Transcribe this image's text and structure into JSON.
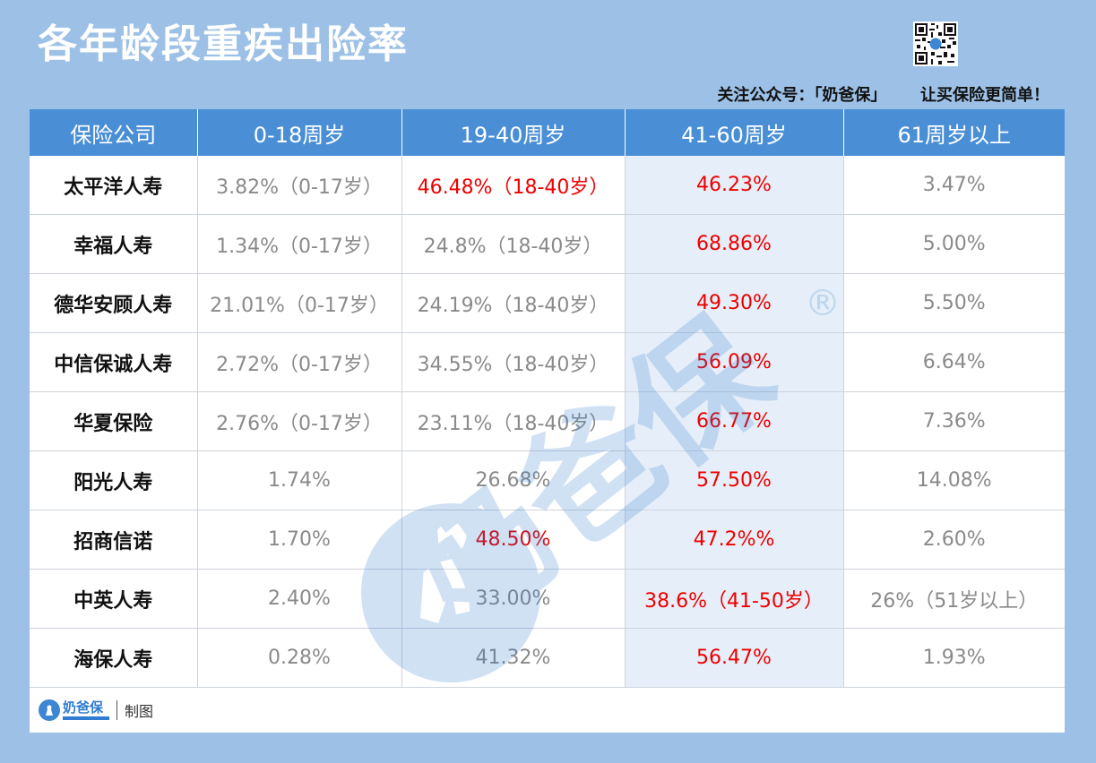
{
  "header": {
    "title": "各年龄段重疾出险率",
    "follow_text": "关注公众号：「奶爸保」      让买保险更简单！"
  },
  "table": {
    "columns": [
      "保险公司",
      "0-18周岁",
      "19-40周岁",
      "41-60周岁",
      "61周岁以上"
    ],
    "rows": [
      {
        "company": "太平洋人寿",
        "c1": "3.82%（0-17岁）",
        "c2": "46.48%（18-40岁）",
        "c3": "46.23%",
        "c4": "3.47%"
      },
      {
        "company": "幸福人寿",
        "c1": "1.34%（0-17岁）",
        "c2": "24.8%（18-40岁）",
        "c3": "68.86%",
        "c4": "5.00%"
      },
      {
        "company": "德华安顾人寿",
        "c1": "21.01%（0-17岁）",
        "c2": "24.19%（18-40岁）",
        "c3": "49.30%",
        "c4": "5.50%"
      },
      {
        "company": "中信保诚人寿",
        "c1": "2.72%（0-17岁）",
        "c2": "34.55%（18-40岁）",
        "c3": "56.09%",
        "c4": "6.64%"
      },
      {
        "company": "华夏保险",
        "c1": "2.76%（0-17岁）",
        "c2": "23.11%（18-40岁）",
        "c3": "66.77%",
        "c4": "7.36%"
      },
      {
        "company": "阳光人寿",
        "c1": "1.74%",
        "c2": "26.68%",
        "c3": "57.50%",
        "c4": "14.08%"
      },
      {
        "company": "招商信诺",
        "c1": "1.70%",
        "c2": "48.50%",
        "c3": "47.2%%",
        "c4": "2.60%"
      },
      {
        "company": "中英人寿",
        "c1": "2.40%",
        "c2": "33.00%",
        "c3": "38.6%（41-50岁）",
        "c4": "26%（51岁以上）"
      },
      {
        "company": "海保人寿",
        "c1": "0.28%",
        "c2": "41.32%",
        "c3": "56.47%",
        "c4": "1.93%"
      }
    ],
    "red_cells": [
      [
        0,
        "c2"
      ],
      [
        6,
        "c2"
      ]
    ]
  },
  "watermark": {
    "text": "奶爸保",
    "mark": "®"
  },
  "footer": {
    "logo_name": "奶爸保",
    "made_label": "制图"
  },
  "colors": {
    "background": "#9dc1e6",
    "header_blue": "#4a8fd6",
    "highlight_column": "#e6eff9",
    "red_text": "#ee0000",
    "gray_text": "#8a8a8a"
  },
  "icons": [
    "qr-code-icon",
    "naibabao-logo-icon"
  ]
}
